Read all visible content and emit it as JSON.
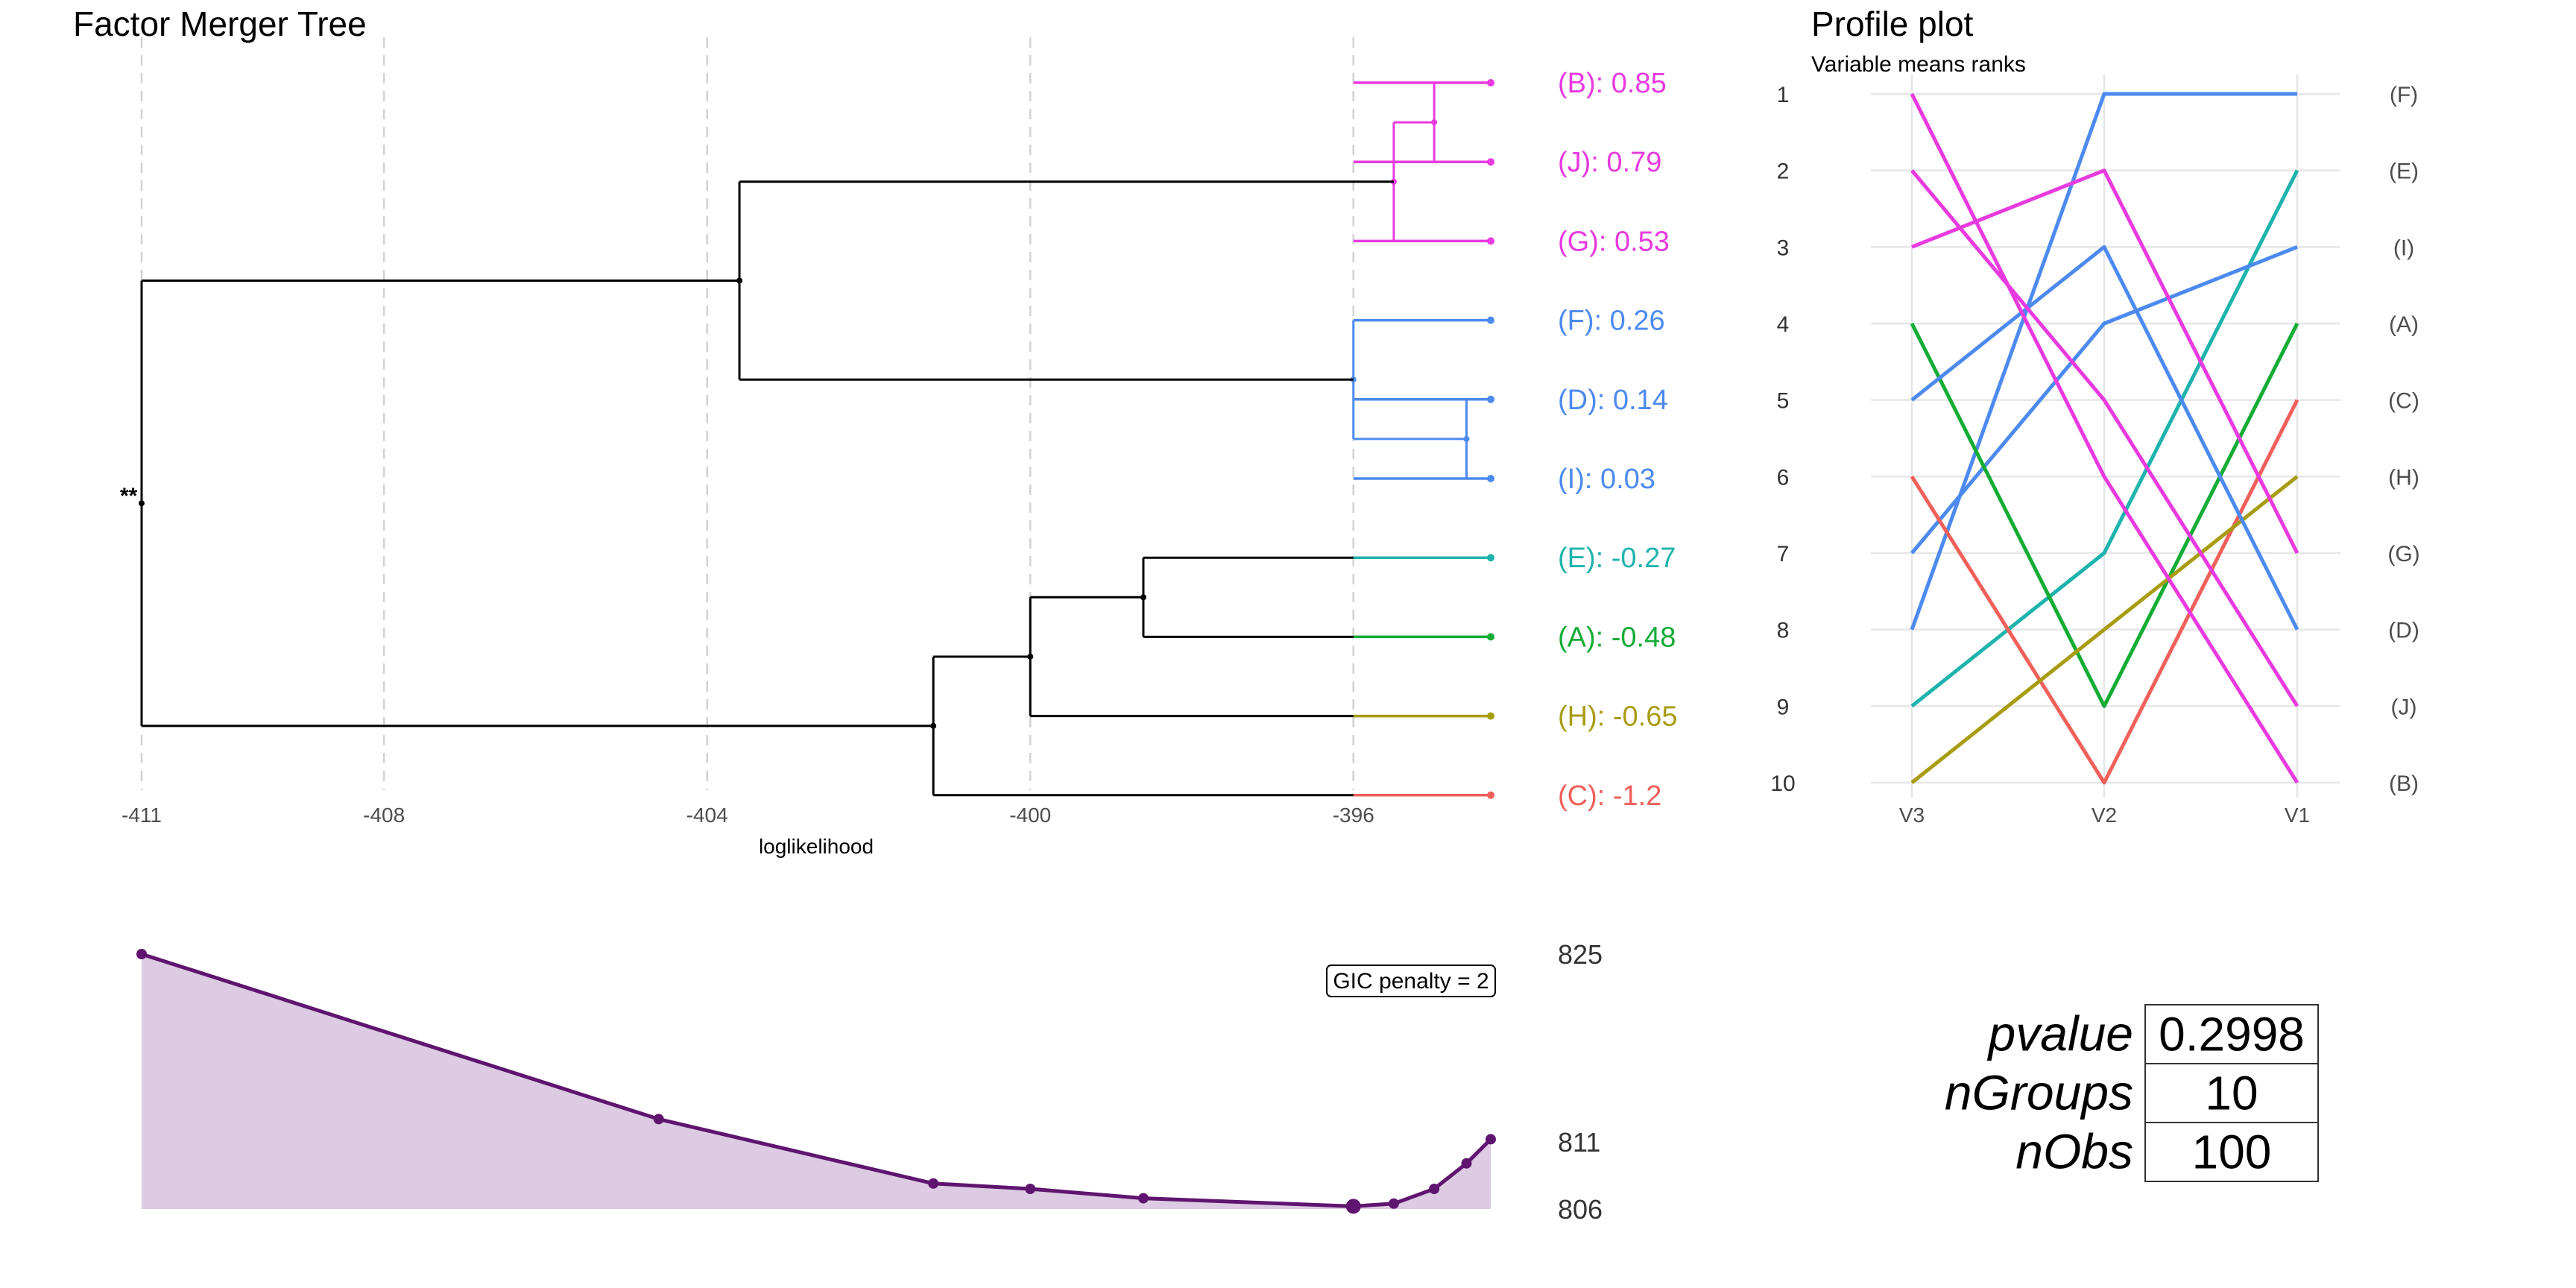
{
  "colors": {
    "pink": "#E83ADF",
    "blue": "#4C8AEF",
    "teal": "#1EB3AC",
    "green": "#14AC35",
    "olive": "#A89C12",
    "red": "#F0605A",
    "purple": "#5F156F",
    "purple_fill": "#DCCBE2",
    "grid": "#d2d2d2",
    "tree": "#000000"
  },
  "chart_data": [
    {
      "type": "dendrogram",
      "title": "Factor Merger Tree",
      "xlabel": "loglikelihood",
      "xlim": [
        -411,
        -394
      ],
      "xticks": [
        -411,
        -408,
        -404,
        -400,
        -396
      ],
      "significance_label": "**",
      "leaves": [
        {
          "group": "(B)",
          "value": "0.85",
          "color": "pink"
        },
        {
          "group": "(J)",
          "value": "0.79",
          "color": "pink"
        },
        {
          "group": "(G)",
          "value": "0.53",
          "color": "pink"
        },
        {
          "group": "(F)",
          "value": "0.26",
          "color": "blue"
        },
        {
          "group": "(D)",
          "value": "0.14",
          "color": "blue"
        },
        {
          "group": "(I)",
          "value": "0.03",
          "color": "blue"
        },
        {
          "group": "(E)",
          "value": "-0.27",
          "color": "teal"
        },
        {
          "group": "(A)",
          "value": "-0.48",
          "color": "green"
        },
        {
          "group": "(H)",
          "value": "-0.65",
          "color": "olive"
        },
        {
          "group": "(C)",
          "value": "-1.2",
          "color": "red"
        }
      ],
      "leaf_loglik": -394.3,
      "merges": [
        {
          "a": 4,
          "b": 5,
          "loglik": -394.6,
          "color": "blue"
        },
        {
          "a": 0,
          "b": 1,
          "loglik": -395.0,
          "color": "pink"
        },
        {
          "a": "m1",
          "b": 2,
          "loglik": -395.5,
          "color": "pink"
        },
        {
          "a": 3,
          "b": "m0",
          "loglik": -396.0,
          "color": "blue"
        },
        {
          "a": 6,
          "b": 7,
          "loglik": -398.6,
          "color": "tree"
        },
        {
          "a": "m4",
          "b": 8,
          "loglik": -400.0,
          "color": "tree"
        },
        {
          "a": "m5",
          "b": 9,
          "loglik": -401.2,
          "color": "tree"
        },
        {
          "a": "m2",
          "b": "m3",
          "loglik": -403.6,
          "color": "tree"
        },
        {
          "a": "m7",
          "b": "m6",
          "loglik": -411.0,
          "color": "tree"
        }
      ]
    },
    {
      "type": "line",
      "title": "Profile plot",
      "subtitle": "Variable means ranks",
      "categories": [
        "V3",
        "V2",
        "V1"
      ],
      "ylim": [
        1,
        10
      ],
      "y_reversed": true,
      "yticks": [
        1,
        2,
        3,
        4,
        5,
        6,
        7,
        8,
        9,
        10
      ],
      "series": [
        {
          "name": "(F)",
          "color": "blue",
          "values": [
            8,
            1,
            1
          ]
        },
        {
          "name": "(E)",
          "color": "teal",
          "values": [
            9,
            7,
            2
          ]
        },
        {
          "name": "(I)",
          "color": "blue",
          "values": [
            7,
            4,
            3
          ]
        },
        {
          "name": "(A)",
          "color": "green",
          "values": [
            4,
            9,
            4
          ]
        },
        {
          "name": "(C)",
          "color": "red",
          "values": [
            6,
            10,
            5
          ]
        },
        {
          "name": "(H)",
          "color": "olive",
          "values": [
            10,
            8,
            6
          ]
        },
        {
          "name": "(G)",
          "color": "pink",
          "values": [
            3,
            2,
            7
          ]
        },
        {
          "name": "(D)",
          "color": "blue",
          "values": [
            5,
            3,
            8
          ]
        },
        {
          "name": "(J)",
          "color": "pink",
          "values": [
            2,
            5,
            9
          ]
        },
        {
          "name": "(B)",
          "color": "pink",
          "values": [
            1,
            6,
            10
          ]
        }
      ]
    },
    {
      "type": "area",
      "annotation": "GIC penalty = 2",
      "ylim": [
        806,
        825
      ],
      "yticks": [
        825,
        811,
        806
      ],
      "x": [
        -411,
        -404.6,
        -401.2,
        -400.0,
        -398.6,
        -396.0,
        -395.5,
        -395.0,
        -394.6,
        -394.3
      ],
      "values": [
        825,
        812.7,
        807.9,
        807.5,
        806.8,
        806.2,
        806.4,
        807.5,
        809.4,
        811.2
      ],
      "optimum_index": 5
    }
  ],
  "stats_table": [
    {
      "label": "pvalue",
      "value": "0.2998"
    },
    {
      "label": "nGroups",
      "value": "10"
    },
    {
      "label": "nObs",
      "value": "100"
    }
  ]
}
